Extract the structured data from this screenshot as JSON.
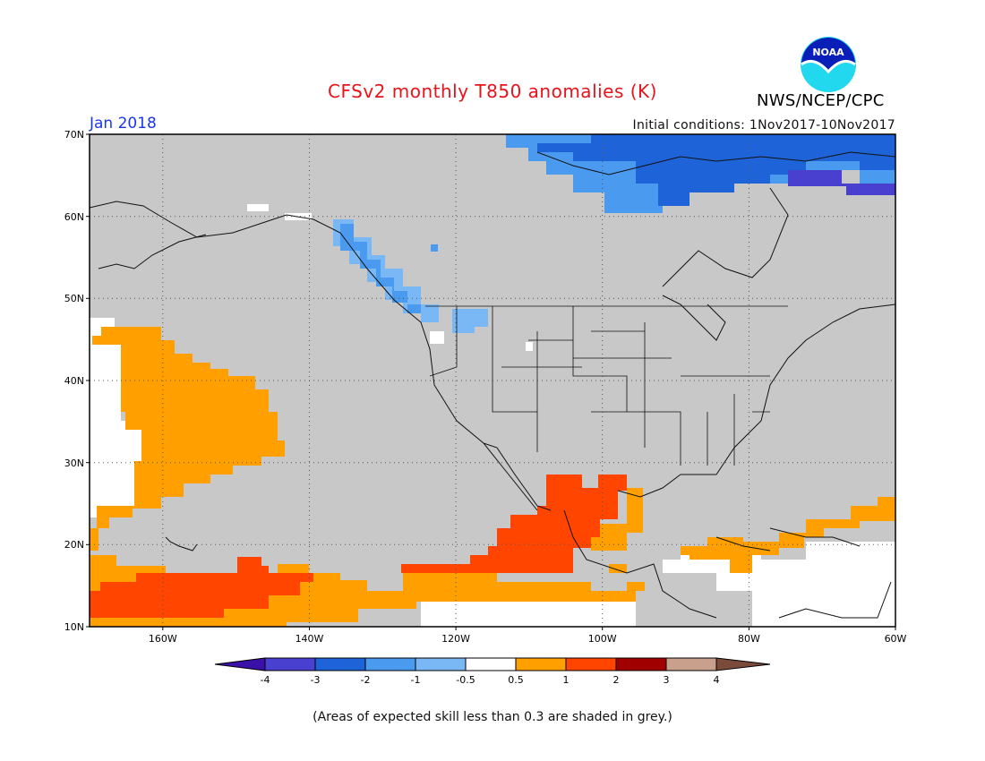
{
  "title": "CFSv2 monthly T850 anomalies (K)",
  "forecast_month": "Jan 2018",
  "initial_conditions": "Initial conditions: 1Nov2017-10Nov2017",
  "agency_label": "NWS/NCEP/CPC",
  "logo_text": "NOAA",
  "footnote": "(Areas of expected skill less than 0.3 are shaded in grey.)",
  "colors": {
    "grey_low_skill": "#c8c8c8",
    "white_neutral": "#ffffff",
    "cool_1": "#7ab8f5",
    "cool_2": "#4a9af0",
    "cool_3": "#1e64d8",
    "cool_4": "#4a40d0",
    "warm_1": "#ffa000",
    "warm_2": "#ff4500",
    "warm_3": "#a00000",
    "warm_4": "#c8a08c"
  },
  "map": {
    "lat_labels": [
      "10N",
      "20N",
      "30N",
      "40N",
      "50N",
      "60N",
      "70N"
    ],
    "lon_labels": [
      "160W",
      "140W",
      "120W",
      "100W",
      "80W",
      "60W"
    ],
    "lat_range": [
      10,
      70
    ],
    "lon_range": [
      -170,
      -60
    ]
  },
  "colorbar": {
    "tick_labels": [
      "-4",
      "-3",
      "-2",
      "-1",
      "-0.5",
      "0.5",
      "1",
      "2",
      "3",
      "4"
    ],
    "colors": [
      "#3a10a8",
      "#4a40d0",
      "#1e64d8",
      "#4a9af0",
      "#7ab8f5",
      "#ffffff",
      "#ffa000",
      "#ff4500",
      "#a00000",
      "#c8a08c",
      "#7a4a3a"
    ]
  }
}
